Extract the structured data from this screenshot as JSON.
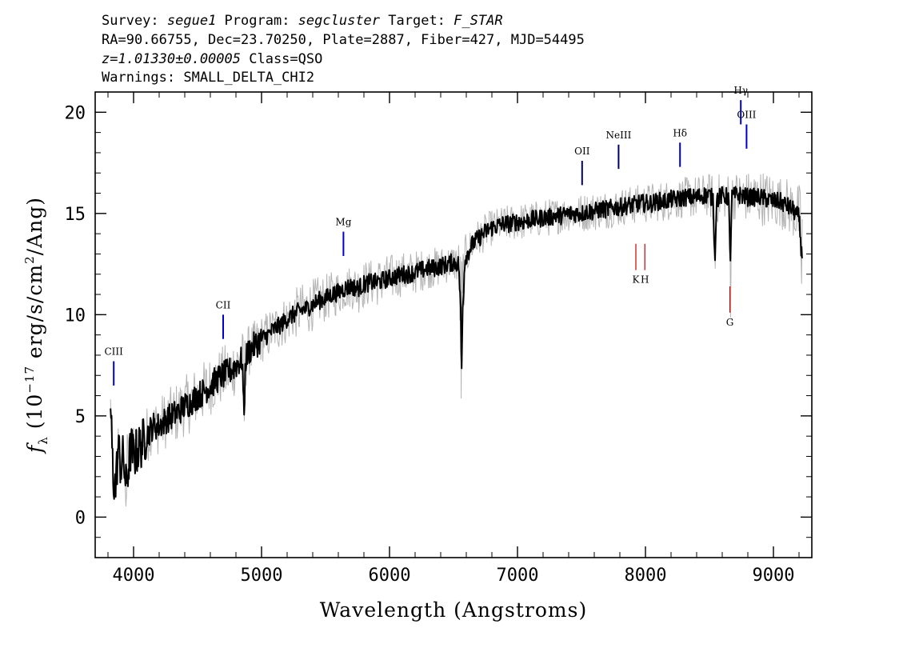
{
  "header": {
    "line1": [
      {
        "text": "Survey: ",
        "italic": false
      },
      {
        "text": "segue1",
        "italic": true
      },
      {
        "text": " Program: ",
        "italic": false
      },
      {
        "text": "segcluster",
        "italic": true
      },
      {
        "text": " Target: ",
        "italic": false
      },
      {
        "text": "F_STAR",
        "italic": true
      }
    ],
    "line2": "RA=90.66755, Dec=23.70250, Plate=2887, Fiber=427, MJD=54495",
    "line3": [
      {
        "text": "z=1.01330±0.00005",
        "italic": true
      },
      {
        "text": " Class=QSO",
        "italic": false
      }
    ],
    "line4": "Warnings: SMALL_DELTA_CHI2"
  },
  "chart_data": {
    "type": "line",
    "title": "",
    "xlabel": "Wavelength (Angstroms)",
    "ylabel": "f_λ (10^-17 erg/s/cm^2/Ang)",
    "xlim": [
      3700,
      9300
    ],
    "ylim": [
      -2,
      21
    ],
    "x_ticks": [
      4000,
      5000,
      6000,
      7000,
      8000,
      9000
    ],
    "y_ticks": [
      0,
      5,
      10,
      15,
      20
    ],
    "grid": false,
    "series": [
      {
        "role": "flux",
        "color": "#000000",
        "points": [
          [
            3820,
            5.5
          ],
          [
            3840,
            2.0
          ],
          [
            3860,
            1.5
          ],
          [
            3880,
            3.5
          ],
          [
            3900,
            2.5
          ],
          [
            3920,
            3.0
          ],
          [
            3940,
            1.5
          ],
          [
            3960,
            2.5
          ],
          [
            3980,
            3.5
          ],
          [
            4000,
            3.0
          ],
          [
            4050,
            3.5
          ],
          [
            4100,
            4.0
          ],
          [
            4150,
            4.5
          ],
          [
            4200,
            4.5
          ],
          [
            4250,
            4.8
          ],
          [
            4300,
            5.0
          ],
          [
            4350,
            5.2
          ],
          [
            4400,
            5.5
          ],
          [
            4450,
            5.7
          ],
          [
            4500,
            6.0
          ],
          [
            4550,
            6.2
          ],
          [
            4600,
            6.5
          ],
          [
            4650,
            6.8
          ],
          [
            4700,
            7.0
          ],
          [
            4750,
            7.2
          ],
          [
            4800,
            7.5
          ],
          [
            4850,
            7.8
          ],
          [
            4862,
            4.8
          ],
          [
            4875,
            7.8
          ],
          [
            4900,
            8.2
          ],
          [
            4950,
            8.5
          ],
          [
            5000,
            8.8
          ],
          [
            5050,
            9.0
          ],
          [
            5100,
            9.3
          ],
          [
            5150,
            9.5
          ],
          [
            5200,
            9.8
          ],
          [
            5250,
            10.0
          ],
          [
            5300,
            10.2
          ],
          [
            5350,
            10.3
          ],
          [
            5400,
            10.5
          ],
          [
            5450,
            10.7
          ],
          [
            5500,
            10.8
          ],
          [
            5550,
            11.0
          ],
          [
            5600,
            11.1
          ],
          [
            5650,
            11.3
          ],
          [
            5700,
            11.4
          ],
          [
            5750,
            11.3
          ],
          [
            5800,
            11.5
          ],
          [
            5850,
            11.6
          ],
          [
            5900,
            11.6
          ],
          [
            5950,
            11.7
          ],
          [
            6000,
            11.8
          ],
          [
            6050,
            11.9
          ],
          [
            6100,
            12.0
          ],
          [
            6150,
            12.0
          ],
          [
            6200,
            12.1
          ],
          [
            6250,
            12.2
          ],
          [
            6300,
            12.3
          ],
          [
            6350,
            12.3
          ],
          [
            6400,
            12.4
          ],
          [
            6450,
            12.5
          ],
          [
            6500,
            12.6
          ],
          [
            6540,
            12.5
          ],
          [
            6555,
            10.5
          ],
          [
            6563,
            6.9
          ],
          [
            6572,
            10.5
          ],
          [
            6590,
            12.8
          ],
          [
            6650,
            13.5
          ],
          [
            6700,
            13.8
          ],
          [
            6750,
            14.1
          ],
          [
            6800,
            14.3
          ],
          [
            6850,
            14.4
          ],
          [
            6900,
            14.5
          ],
          [
            6950,
            14.5
          ],
          [
            7000,
            14.6
          ],
          [
            7050,
            14.6
          ],
          [
            7100,
            14.7
          ],
          [
            7150,
            14.7
          ],
          [
            7200,
            14.8
          ],
          [
            7250,
            14.8
          ],
          [
            7300,
            14.9
          ],
          [
            7350,
            14.9
          ],
          [
            7400,
            15.0
          ],
          [
            7450,
            15.0
          ],
          [
            7500,
            15.0
          ],
          [
            7550,
            15.1
          ],
          [
            7600,
            15.1
          ],
          [
            7650,
            15.2
          ],
          [
            7700,
            15.2
          ],
          [
            7750,
            15.3
          ],
          [
            7800,
            15.3
          ],
          [
            7850,
            15.4
          ],
          [
            7900,
            15.4
          ],
          [
            7950,
            15.5
          ],
          [
            8000,
            15.5
          ],
          [
            8050,
            15.5
          ],
          [
            8100,
            15.6
          ],
          [
            8150,
            15.6
          ],
          [
            8200,
            15.7
          ],
          [
            8250,
            15.7
          ],
          [
            8300,
            15.8
          ],
          [
            8350,
            15.8
          ],
          [
            8400,
            15.8
          ],
          [
            8450,
            15.9
          ],
          [
            8500,
            15.9
          ],
          [
            8530,
            15.7
          ],
          [
            8542,
            12.5
          ],
          [
            8555,
            15.7
          ],
          [
            8600,
            15.9
          ],
          [
            8650,
            15.8
          ],
          [
            8662,
            12.5
          ],
          [
            8675,
            15.8
          ],
          [
            8700,
            15.9
          ],
          [
            8750,
            15.9
          ],
          [
            8800,
            15.8
          ],
          [
            8850,
            15.8
          ],
          [
            8900,
            15.8
          ],
          [
            8950,
            15.7
          ],
          [
            9000,
            15.6
          ],
          [
            9050,
            15.6
          ],
          [
            9100,
            15.4
          ],
          [
            9150,
            15.2
          ],
          [
            9200,
            14.8
          ],
          [
            9220,
            13.0
          ]
        ]
      },
      {
        "role": "error",
        "color": "#b4b4b4",
        "points": [
          [
            3820,
            6.5
          ],
          [
            3850,
            1.0
          ],
          [
            3880,
            5.0
          ],
          [
            3900,
            0.5
          ],
          [
            3950,
            4.5
          ],
          [
            4000,
            4.5
          ],
          [
            4100,
            5.5
          ],
          [
            4200,
            6.0
          ],
          [
            4300,
            6.5
          ],
          [
            4400,
            7.0
          ],
          [
            4500,
            7.5
          ],
          [
            4600,
            8.0
          ],
          [
            4700,
            8.5
          ],
          [
            4800,
            9.0
          ],
          [
            4900,
            9.5
          ],
          [
            5000,
            10.0
          ],
          [
            5100,
            10.5
          ],
          [
            5200,
            11.0
          ],
          [
            5300,
            11.5
          ],
          [
            5400,
            11.8
          ],
          [
            5500,
            12.0
          ],
          [
            5600,
            12.3
          ],
          [
            5700,
            12.5
          ],
          [
            5800,
            12.7
          ],
          [
            5900,
            12.8
          ],
          [
            6000,
            13.0
          ],
          [
            6100,
            13.1
          ],
          [
            6200,
            13.2
          ],
          [
            6300,
            13.3
          ],
          [
            6400,
            13.4
          ],
          [
            6500,
            13.5
          ],
          [
            6600,
            14.0
          ],
          [
            6700,
            14.8
          ],
          [
            6800,
            15.2
          ],
          [
            6900,
            15.4
          ],
          [
            7000,
            15.5
          ],
          [
            7100,
            15.6
          ],
          [
            7200,
            15.7
          ],
          [
            7300,
            15.8
          ],
          [
            7400,
            15.9
          ],
          [
            7500,
            16.0
          ],
          [
            7600,
            16.1
          ],
          [
            7700,
            16.2
          ],
          [
            7800,
            16.3
          ],
          [
            7900,
            16.4
          ],
          [
            8000,
            16.5
          ],
          [
            8100,
            16.6
          ],
          [
            8200,
            16.7
          ],
          [
            8300,
            16.8
          ],
          [
            8400,
            16.9
          ],
          [
            8500,
            17.0
          ],
          [
            8600,
            17.0
          ],
          [
            8700,
            17.1
          ],
          [
            8800,
            17.1
          ],
          [
            8900,
            17.2
          ],
          [
            9000,
            17.0
          ],
          [
            9100,
            16.8
          ],
          [
            9200,
            16.5
          ]
        ]
      }
    ],
    "emission_lines": [
      {
        "label": "CIII",
        "x": 3845,
        "y": 6.5,
        "color": "#0000cc",
        "len": 1.2
      },
      {
        "label": "CII",
        "x": 4700,
        "y": 8.8,
        "color": "#0000cc",
        "len": 1.2
      },
      {
        "label": "Mg",
        "x": 5640,
        "y": 12.9,
        "color": "#0000cc",
        "len": 1.2
      },
      {
        "label": "OII",
        "x": 7505,
        "y": 16.4,
        "color": "#000066",
        "len": 1.2
      },
      {
        "label": "NeIII",
        "x": 7790,
        "y": 17.2,
        "color": "#000066",
        "len": 1.2
      },
      {
        "label": "Hδ",
        "x": 8270,
        "y": 17.3,
        "color": "#0000cc",
        "len": 1.2
      },
      {
        "label": "Hγ",
        "x": 8745,
        "y": 19.4,
        "color": "#0000cc",
        "len": 1.2
      },
      {
        "label": "OIII",
        "x": 8790,
        "y": 18.2,
        "color": "#0000cc",
        "len": 1.2
      }
    ],
    "absorption_lines": [
      {
        "label": "K",
        "x": 7925,
        "y": 13.5,
        "color": "#cc0000",
        "len": 1.3
      },
      {
        "label": "H",
        "x": 7995,
        "y": 13.5,
        "color": "#cc0000",
        "len": 1.3
      },
      {
        "label": "G",
        "x": 8660,
        "y": 11.4,
        "color": "#cc0000",
        "len": 1.3
      }
    ]
  }
}
